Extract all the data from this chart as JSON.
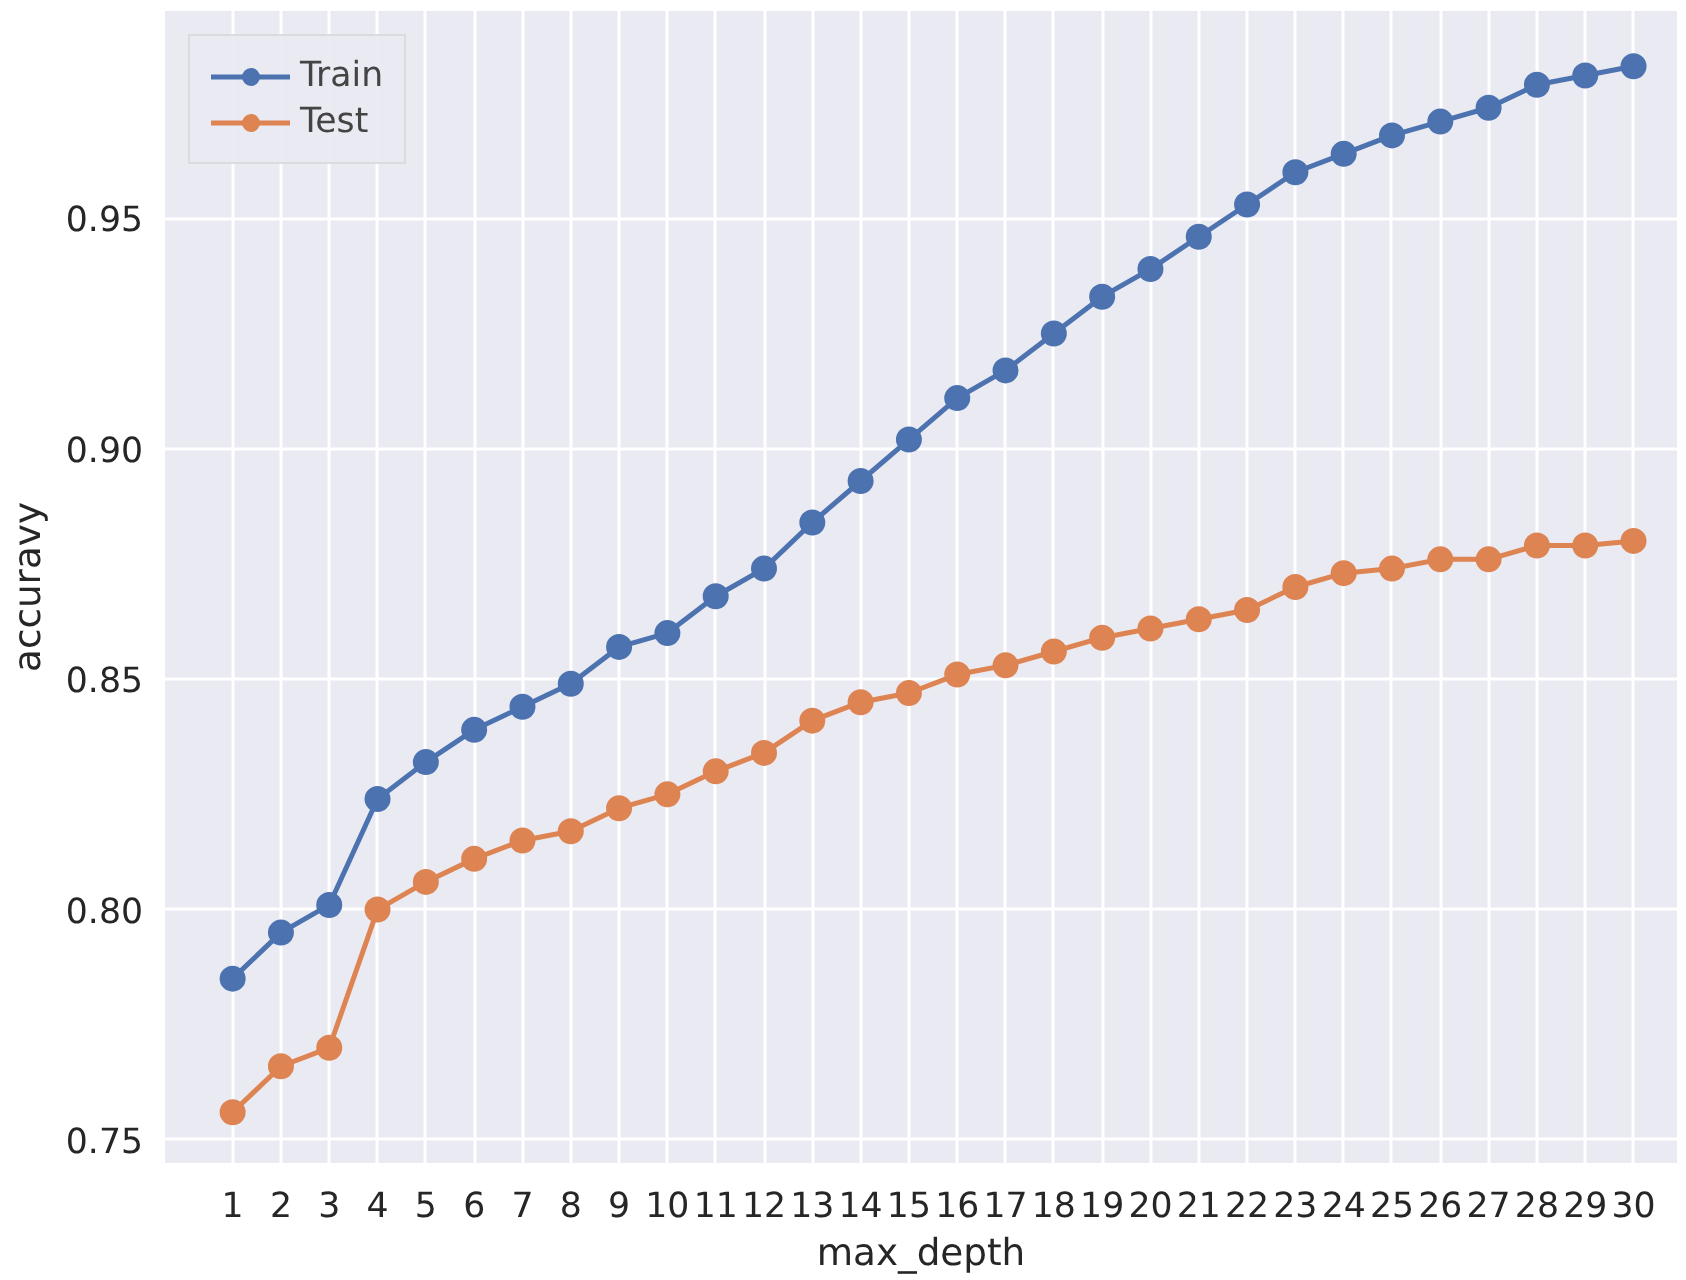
{
  "chart_data": {
    "type": "line",
    "xlabel": "max_depth",
    "ylabel": "accuravy",
    "x": [
      1,
      2,
      3,
      4,
      5,
      6,
      7,
      8,
      9,
      10,
      11,
      12,
      13,
      14,
      15,
      16,
      17,
      18,
      19,
      20,
      21,
      22,
      23,
      24,
      25,
      26,
      27,
      28,
      29,
      30
    ],
    "series": [
      {
        "name": "Train",
        "color": "#4c72b0",
        "values": [
          0.785,
          0.795,
          0.801,
          0.824,
          0.832,
          0.839,
          0.844,
          0.849,
          0.857,
          0.86,
          0.868,
          0.874,
          0.884,
          0.893,
          0.902,
          0.911,
          0.917,
          0.925,
          0.933,
          0.939,
          0.946,
          0.953,
          0.96,
          0.964,
          0.968,
          0.971,
          0.974,
          0.979,
          0.981,
          0.983
        ]
      },
      {
        "name": "Test",
        "color": "#dd8452",
        "values": [
          0.756,
          0.766,
          0.77,
          0.8,
          0.806,
          0.811,
          0.815,
          0.817,
          0.822,
          0.825,
          0.83,
          0.834,
          0.841,
          0.845,
          0.847,
          0.851,
          0.853,
          0.856,
          0.859,
          0.861,
          0.863,
          0.865,
          0.87,
          0.873,
          0.874,
          0.876,
          0.876,
          0.879,
          0.879,
          0.88
        ]
      }
    ],
    "xlim": [
      -0.4,
      30.9
    ],
    "ylim": [
      0.745,
      0.995
    ],
    "xticks": [
      1,
      2,
      3,
      4,
      5,
      6,
      7,
      8,
      9,
      10,
      11,
      12,
      13,
      14,
      15,
      16,
      17,
      18,
      19,
      20,
      21,
      22,
      23,
      24,
      25,
      26,
      27,
      28,
      29,
      30
    ],
    "yticks": [
      {
        "value": 0.75,
        "label": "0.75"
      },
      {
        "value": 0.8,
        "label": "0.80"
      },
      {
        "value": 0.85,
        "label": "0.85"
      },
      {
        "value": 0.9,
        "label": "0.90"
      },
      {
        "value": 0.95,
        "label": "0.95"
      }
    ],
    "grid": true,
    "legend": "top left",
    "marker": "circle",
    "line_style": "solid"
  }
}
